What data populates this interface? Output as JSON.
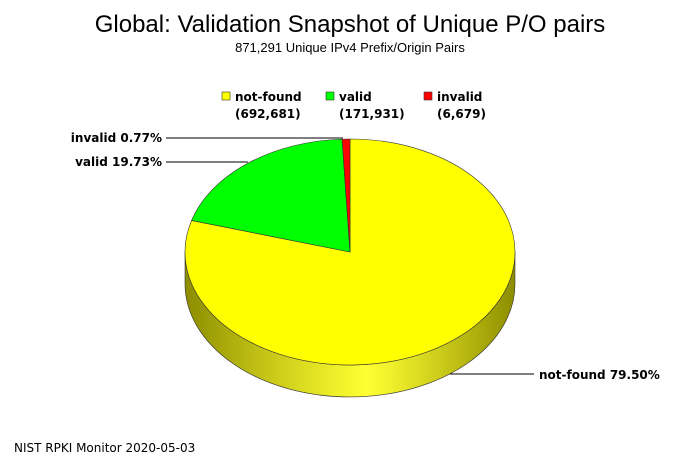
{
  "chart_data": {
    "type": "pie",
    "title": "Global: Validation Snapshot of Unique P/O pairs",
    "subtitle": "871,291 Unique IPv4 Prefix/Origin Pairs",
    "legend_position": "top",
    "slices": [
      {
        "name": "not-found",
        "count": 692681,
        "count_label": "(692,681)",
        "percent": 79.5,
        "label": "not-found 79.50%",
        "color": "#ffff00",
        "side_color": "#8c8c00"
      },
      {
        "name": "valid",
        "count": 171931,
        "count_label": "(171,931)",
        "percent": 19.73,
        "label": "valid 19.73%",
        "color": "#00ff00",
        "side_color": "#008c00"
      },
      {
        "name": "invalid",
        "count": 6679,
        "count_label": "(6,679)",
        "percent": 0.77,
        "label": "invalid 0.77%",
        "color": "#ff0000",
        "side_color": "#8c0000"
      }
    ]
  },
  "footer": "NIST RPKI Monitor 2020-05-03"
}
